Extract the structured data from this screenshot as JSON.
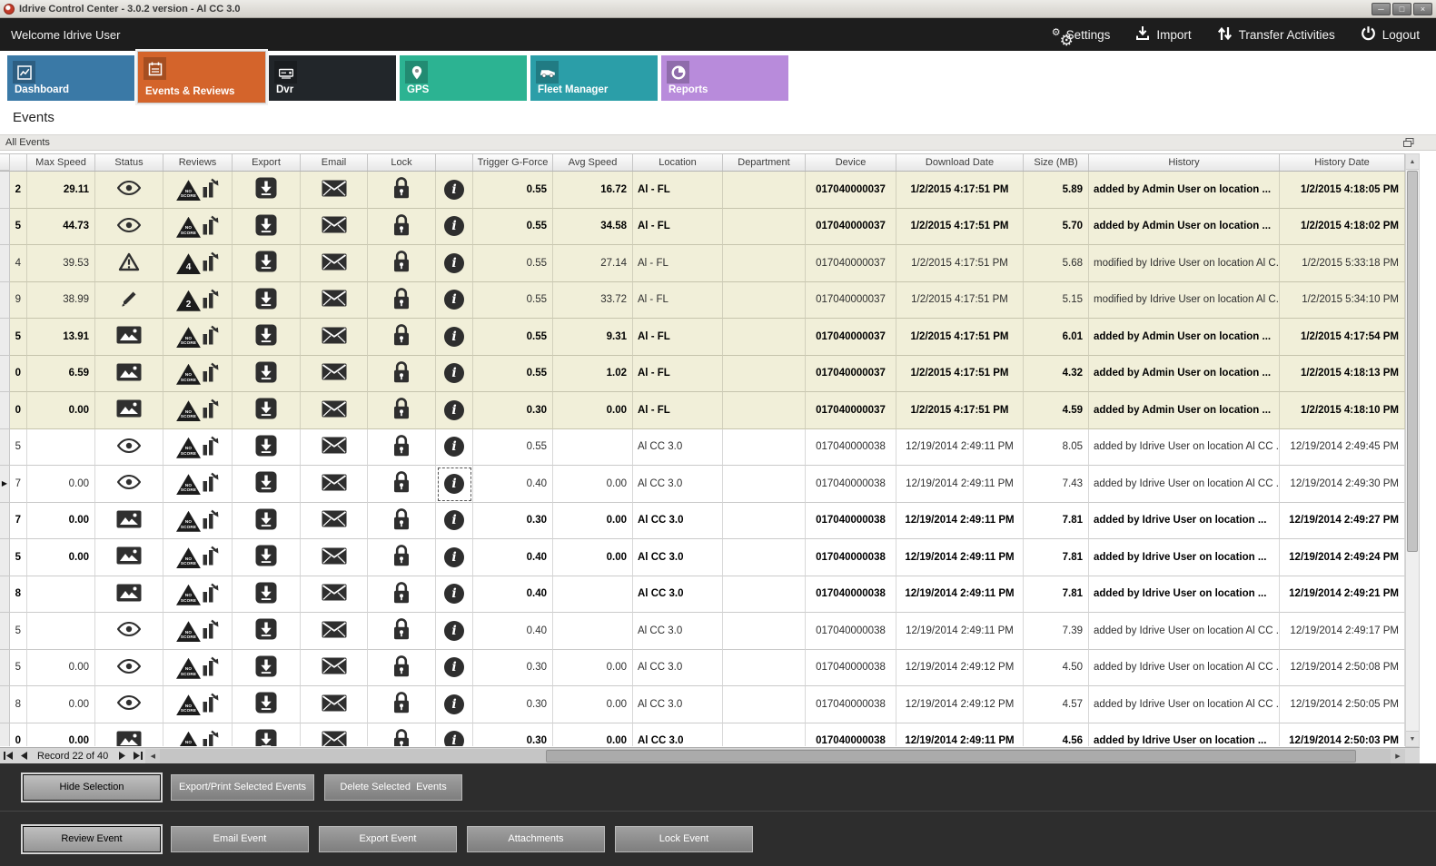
{
  "window": {
    "title": "Idrive Control Center - 3.0.2 version - Al CC 3.0",
    "controls": [
      {
        "name": "minimize",
        "glyph": "─"
      },
      {
        "name": "maximize",
        "glyph": "□"
      },
      {
        "name": "close",
        "glyph": "×"
      }
    ]
  },
  "topbar": {
    "welcome": "Welcome Idrive User",
    "actions": [
      {
        "label": "Settings",
        "icon": "gears-icon"
      },
      {
        "label": "Import",
        "icon": "import-icon"
      },
      {
        "label": "Transfer Activities",
        "icon": "transfer-icon"
      },
      {
        "label": "Logout",
        "icon": "power-icon"
      }
    ]
  },
  "tabs": [
    {
      "label": "Dashboard",
      "icon": "chart-line-icon",
      "color": "#3a79a6",
      "selected": false
    },
    {
      "label": "Events & Reviews",
      "icon": "events-icon",
      "color": "#d4642b",
      "selected": true
    },
    {
      "label": "Dvr",
      "icon": "dvr-icon",
      "color": "#22262a",
      "selected": false
    },
    {
      "label": "GPS",
      "icon": "gps-pin-icon",
      "color": "#2cb392",
      "selected": false
    },
    {
      "label": "Fleet Manager",
      "icon": "fleet-icon",
      "color": "#2b9ea8",
      "selected": false
    },
    {
      "label": "Reports",
      "icon": "reports-icon",
      "color": "#b88bdb",
      "selected": false
    }
  ],
  "page": {
    "heading": "Events",
    "group_title": "All Events"
  },
  "icons": {
    "up": "▲",
    "down": "▼",
    "left": "◀",
    "right": "▶",
    "row_indicator": "▶"
  },
  "table": {
    "columns": [
      "Max Speed",
      "Status",
      "Reviews",
      "Export",
      "Email",
      "Lock",
      "",
      "Trigger G-Force",
      "Avg Speed",
      "Location",
      "Department",
      "Device",
      "Download Date",
      "Size (MB)",
      "History",
      "History Date"
    ],
    "rows": [
      {
        "partial": "2",
        "max_speed": "29.11",
        "status": "eye",
        "review": "NO SCORE",
        "trigger": "0.55",
        "avg_speed": "16.72",
        "location": "Al - FL",
        "department": "",
        "device": "017040000037",
        "download_date": "1/2/2015 4:17:51 PM",
        "size": "5.89",
        "history": "added by Admin User on location ...",
        "history_date": "1/2/2015 4:18:05 PM",
        "bold": true,
        "tinted": true,
        "selected": false
      },
      {
        "partial": "5",
        "max_speed": "44.73",
        "status": "eye",
        "review": "NO SCORE",
        "trigger": "0.55",
        "avg_speed": "34.58",
        "location": "Al - FL",
        "department": "",
        "device": "017040000037",
        "download_date": "1/2/2015 4:17:51 PM",
        "size": "5.70",
        "history": "added by Admin User on location ...",
        "history_date": "1/2/2015 4:18:02 PM",
        "bold": true,
        "tinted": true,
        "selected": false
      },
      {
        "partial": "4",
        "max_speed": "39.53",
        "status": "warning",
        "review": "4",
        "trigger": "0.55",
        "avg_speed": "27.14",
        "location": "Al - FL",
        "department": "",
        "device": "017040000037",
        "download_date": "1/2/2015 4:17:51 PM",
        "size": "5.68",
        "history": "modified by Idrive User on location Al C...",
        "history_date": "1/2/2015 5:33:18 PM",
        "bold": false,
        "tinted": true,
        "selected": false
      },
      {
        "partial": "9",
        "max_speed": "38.99",
        "status": "pencil",
        "review": "2",
        "trigger": "0.55",
        "avg_speed": "33.72",
        "location": "Al - FL",
        "department": "",
        "device": "017040000037",
        "download_date": "1/2/2015 4:17:51 PM",
        "size": "5.15",
        "history": "modified by Idrive User on location Al C...",
        "history_date": "1/2/2015 5:34:10 PM",
        "bold": false,
        "tinted": true,
        "selected": false
      },
      {
        "partial": "5",
        "max_speed": "13.91",
        "status": "image",
        "review": "NO SCORE",
        "trigger": "0.55",
        "avg_speed": "9.31",
        "location": "Al - FL",
        "department": "",
        "device": "017040000037",
        "download_date": "1/2/2015 4:17:51 PM",
        "size": "6.01",
        "history": "added by Admin User on location ...",
        "history_date": "1/2/2015 4:17:54 PM",
        "bold": true,
        "tinted": true,
        "selected": false
      },
      {
        "partial": "0",
        "max_speed": "6.59",
        "status": "image",
        "review": "NO SCORE",
        "trigger": "0.55",
        "avg_speed": "1.02",
        "location": "Al - FL",
        "department": "",
        "device": "017040000037",
        "download_date": "1/2/2015 4:17:51 PM",
        "size": "4.32",
        "history": "added by Admin User on location ...",
        "history_date": "1/2/2015 4:18:13 PM",
        "bold": true,
        "tinted": true,
        "selected": false
      },
      {
        "partial": "0",
        "max_speed": "0.00",
        "status": "image",
        "review": "NO SCORE",
        "trigger": "0.30",
        "avg_speed": "0.00",
        "location": "Al - FL",
        "department": "",
        "device": "017040000037",
        "download_date": "1/2/2015 4:17:51 PM",
        "size": "4.59",
        "history": "added by Admin User on location ...",
        "history_date": "1/2/2015 4:18:10 PM",
        "bold": true,
        "tinted": true,
        "selected": false
      },
      {
        "partial": "5",
        "max_speed": "",
        "status": "eye",
        "review": "NO SCORE",
        "trigger": "0.55",
        "avg_speed": "",
        "location": "Al CC 3.0",
        "department": "",
        "device": "017040000038",
        "download_date": "12/19/2014 2:49:11 PM",
        "size": "8.05",
        "history": "added by Idrive User on location Al CC ...",
        "history_date": "12/19/2014 2:49:45 PM",
        "bold": false,
        "tinted": false,
        "selected": false
      },
      {
        "partial": "7",
        "max_speed": "0.00",
        "status": "eye",
        "review": "NO SCORE",
        "trigger": "0.40",
        "avg_speed": "0.00",
        "location": "Al CC 3.0",
        "department": "",
        "device": "017040000038",
        "download_date": "12/19/2014 2:49:11 PM",
        "size": "7.43",
        "history": "added by Idrive User on location Al CC ...",
        "history_date": "12/19/2014 2:49:30 PM",
        "bold": false,
        "tinted": false,
        "selected": true
      },
      {
        "partial": "7",
        "max_speed": "0.00",
        "status": "image",
        "review": "NO SCORE",
        "trigger": "0.30",
        "avg_speed": "0.00",
        "location": "Al CC 3.0",
        "department": "",
        "device": "017040000038",
        "download_date": "12/19/2014 2:49:11 PM",
        "size": "7.81",
        "history": "added by Idrive User on location ...",
        "history_date": "12/19/2014 2:49:27 PM",
        "bold": true,
        "tinted": false,
        "selected": false
      },
      {
        "partial": "5",
        "max_speed": "0.00",
        "status": "image",
        "review": "NO SCORE",
        "trigger": "0.40",
        "avg_speed": "0.00",
        "location": "Al CC 3.0",
        "department": "",
        "device": "017040000038",
        "download_date": "12/19/2014 2:49:11 PM",
        "size": "7.81",
        "history": "added by Idrive User on location ...",
        "history_date": "12/19/2014 2:49:24 PM",
        "bold": true,
        "tinted": false,
        "selected": false
      },
      {
        "partial": "8",
        "max_speed": "",
        "status": "image",
        "review": "NO SCORE",
        "trigger": "0.40",
        "avg_speed": "",
        "location": "Al CC 3.0",
        "department": "",
        "device": "017040000038",
        "download_date": "12/19/2014 2:49:11 PM",
        "size": "7.81",
        "history": "added by Idrive User on location ...",
        "history_date": "12/19/2014 2:49:21 PM",
        "bold": true,
        "tinted": false,
        "selected": false
      },
      {
        "partial": "5",
        "max_speed": "",
        "status": "eye",
        "review": "NO SCORE",
        "trigger": "0.40",
        "avg_speed": "",
        "location": "Al CC 3.0",
        "department": "",
        "device": "017040000038",
        "download_date": "12/19/2014 2:49:11 PM",
        "size": "7.39",
        "history": "added by Idrive User on location Al CC ...",
        "history_date": "12/19/2014 2:49:17 PM",
        "bold": false,
        "tinted": false,
        "selected": false
      },
      {
        "partial": "5",
        "max_speed": "0.00",
        "status": "eye",
        "review": "NO SCORE",
        "trigger": "0.30",
        "avg_speed": "0.00",
        "location": "Al CC 3.0",
        "department": "",
        "device": "017040000038",
        "download_date": "12/19/2014 2:49:12 PM",
        "size": "4.50",
        "history": "added by Idrive User on location Al CC ...",
        "history_date": "12/19/2014 2:50:08 PM",
        "bold": false,
        "tinted": false,
        "selected": false
      },
      {
        "partial": "8",
        "max_speed": "0.00",
        "status": "eye",
        "review": "NO SCORE",
        "trigger": "0.30",
        "avg_speed": "0.00",
        "location": "Al CC 3.0",
        "department": "",
        "device": "017040000038",
        "download_date": "12/19/2014 2:49:12 PM",
        "size": "4.57",
        "history": "added by Idrive User on location Al CC ...",
        "history_date": "12/19/2014 2:50:05 PM",
        "bold": false,
        "tinted": false,
        "selected": false
      },
      {
        "partial": "0",
        "max_speed": "0.00",
        "status": "image",
        "review": "NO SCORE",
        "trigger": "0.30",
        "avg_speed": "0.00",
        "location": "Al CC 3.0",
        "department": "",
        "device": "017040000038",
        "download_date": "12/19/2014 2:49:11 PM",
        "size": "4.56",
        "history": "added by Idrive User on location ...",
        "history_date": "12/19/2014 2:50:03 PM",
        "bold": true,
        "tinted": false,
        "selected": false
      }
    ]
  },
  "navigator": {
    "record_text": "Record 22 of 40"
  },
  "footer": {
    "row1": [
      {
        "label": "Hide Selection",
        "focused": true
      },
      {
        "label": "Export/Print Selected Events",
        "focused": false
      },
      {
        "label": "Delete Selected  Events",
        "focused": false
      }
    ],
    "row2": [
      {
        "label": "Review Event",
        "focused": true
      },
      {
        "label": "Email Event",
        "focused": false
      },
      {
        "label": "Export Event",
        "focused": false
      },
      {
        "label": "Attachments",
        "focused": false
      },
      {
        "label": "Lock Event",
        "focused": false
      }
    ]
  }
}
